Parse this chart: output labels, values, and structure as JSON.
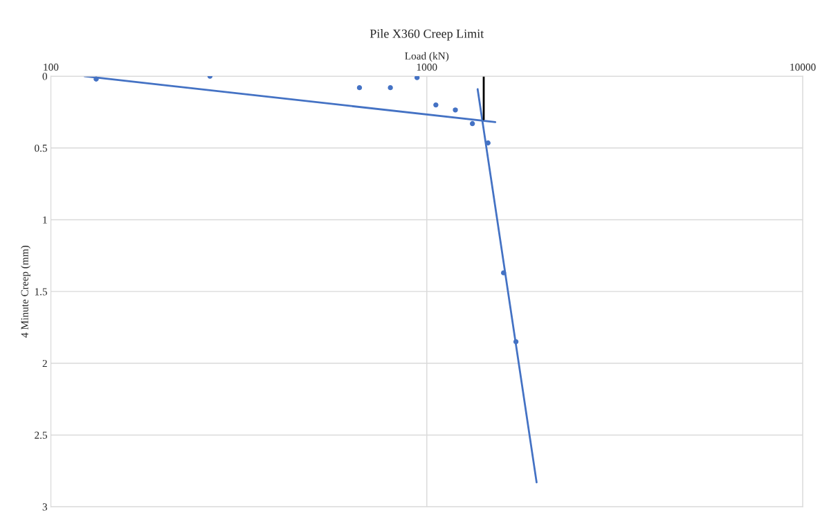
{
  "chart_data": {
    "type": "scatter",
    "title": "Pile X360 Creep Limit",
    "xlabel": "Load (kN)",
    "ylabel": "4 Minute Creep (mm)",
    "log": "x",
    "xlim": [
      100,
      10000
    ],
    "xticks": [
      100,
      1000,
      10000
    ],
    "ylim": [
      3,
      0
    ],
    "yticks": [
      0,
      0.5,
      1,
      1.5,
      2,
      2.5,
      3
    ],
    "grid": true,
    "series": [
      {
        "marker": "circle",
        "color": "#4472c4",
        "x": [
          132,
          265,
          662,
          800,
          942,
          1057,
          1191,
          1322,
          1455,
          1600,
          1726
        ],
        "values": [
          0.02,
          0,
          0.08,
          0.08,
          0.01,
          0.2,
          0.235,
          0.33,
          0.465,
          1.37,
          1.85
        ]
      },
      {
        "type": "line",
        "marker": "none",
        "color": "#4472c4",
        "x": [
          123,
          1521
        ],
        "values": [
          0,
          0.32
        ]
      },
      {
        "type": "line",
        "marker": "none",
        "color": "#4472c4",
        "x": [
          1365,
          1959
        ],
        "values": [
          0.09,
          2.83
        ]
      },
      {
        "type": "line",
        "marker": "none",
        "color": "#000000",
        "x": [
          1417,
          1417
        ],
        "values": [
          0,
          0.3
        ]
      }
    ]
  }
}
